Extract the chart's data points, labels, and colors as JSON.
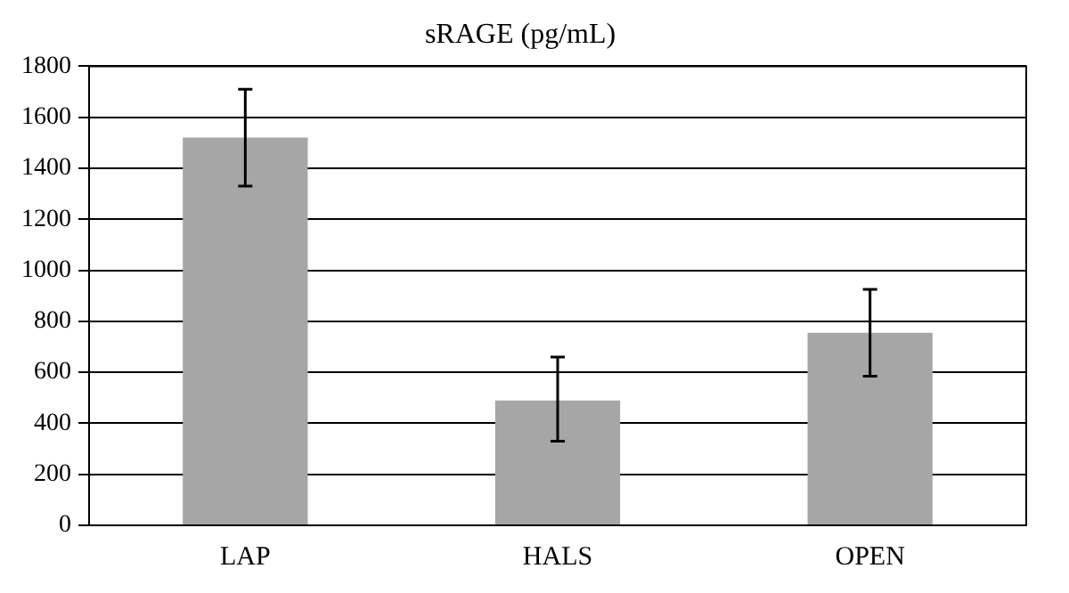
{
  "chart_data": {
    "type": "bar",
    "title": "sRAGE (pg/mL)",
    "categories": [
      "LAP",
      "HALS",
      "OPEN"
    ],
    "values": [
      1520,
      490,
      755
    ],
    "errors": [
      [
        1330,
        1710
      ],
      [
        330,
        660
      ],
      [
        585,
        925
      ]
    ],
    "color": "#a6a6a6",
    "ylim": [
      0,
      1800
    ],
    "yticks": [
      0,
      200,
      400,
      600,
      800,
      1000,
      1200,
      1400,
      1600,
      1800
    ],
    "grid": "y",
    "legend": false
  }
}
